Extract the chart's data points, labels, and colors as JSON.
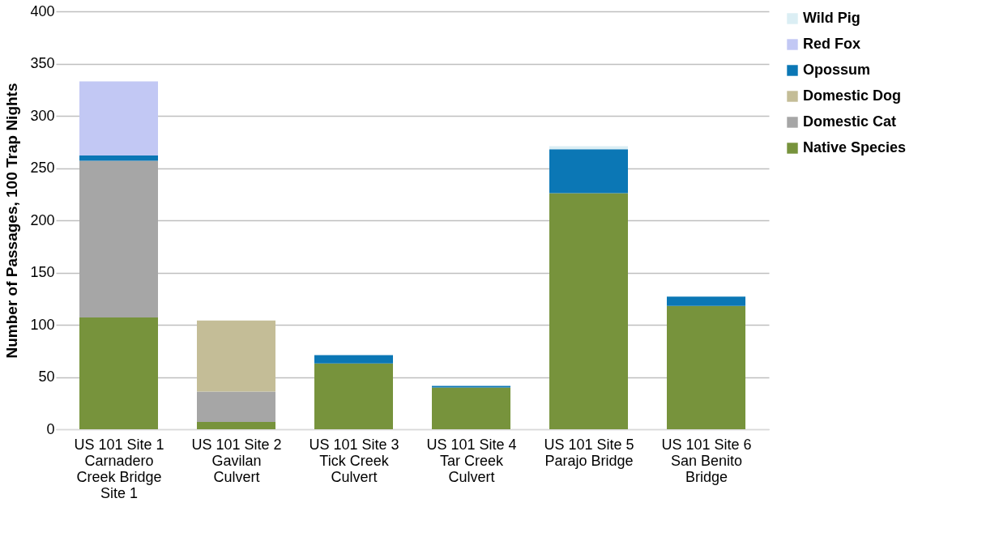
{
  "chart_data": {
    "type": "bar",
    "stacked": true,
    "ylabel": "Number of Passages, 100 Trap Nights",
    "categories": [
      "US 101 Site 1\nCarnadero\nCreek Bridge\nSite 1",
      "US 101 Site 2\nGavilan\nCulvert",
      "US 101 Site 3\nTick Creek\nCulvert",
      "US 101 Site 4\nTar Creek\nCulvert",
      "US 101 Site 5\nParajo Bridge",
      "US 101 Site 6\nSan Benito\nBridge"
    ],
    "series": [
      {
        "name": "Native Species",
        "color": "#77933c",
        "values": [
          107,
          7,
          63,
          40,
          226,
          118
        ]
      },
      {
        "name": "Domestic Cat",
        "color": "#a6a6a6",
        "values": [
          150,
          29,
          null,
          null,
          null,
          null
        ]
      },
      {
        "name": "Domestic Dog",
        "color": "#c4bd97",
        "values": [
          null,
          68,
          null,
          null,
          null,
          null
        ]
      },
      {
        "name": "Opossum",
        "color": "#0b77b5",
        "values": [
          5,
          null,
          8,
          1.5,
          42,
          9
        ]
      },
      {
        "name": "Red Fox",
        "color": "#c2c8f4",
        "values": [
          71,
          null,
          null,
          null,
          null,
          null
        ]
      },
      {
        "name": "Wild Pig",
        "color": "#dbeef4",
        "values": [
          null,
          null,
          null,
          null,
          3,
          null
        ]
      }
    ],
    "ylim": [
      0,
      400
    ],
    "yticks": [
      0,
      50,
      100,
      150,
      200,
      250,
      300,
      350,
      400
    ],
    "grid": "y",
    "legend": "right"
  }
}
